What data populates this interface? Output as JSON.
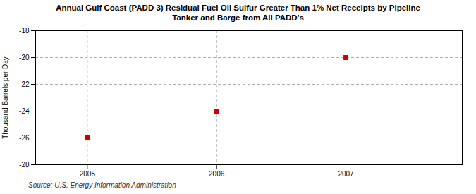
{
  "chart_data": {
    "type": "scatter",
    "title": "Annual Gulf Coast (PADD 3) Residual Fuel Oil Sulfur Greater Than 1% Net Receipts by Pipeline\nTanker and Barge from All PADD's",
    "ylabel": "Thousand Barrels per Day",
    "source": "Source: U.S. Energy Information Administration",
    "x": [
      2005,
      2006,
      2007
    ],
    "values": [
      -26,
      -24,
      -20
    ],
    "color": "#cc0000",
    "marker": "square",
    "xlim": [
      2004.6,
      2007.9
    ],
    "xticks": [
      2005,
      2006,
      2007
    ],
    "ylim": [
      -28,
      -18
    ],
    "yticks": [
      -28,
      -26,
      -24,
      -22,
      -20,
      -18
    ],
    "grid": true
  }
}
